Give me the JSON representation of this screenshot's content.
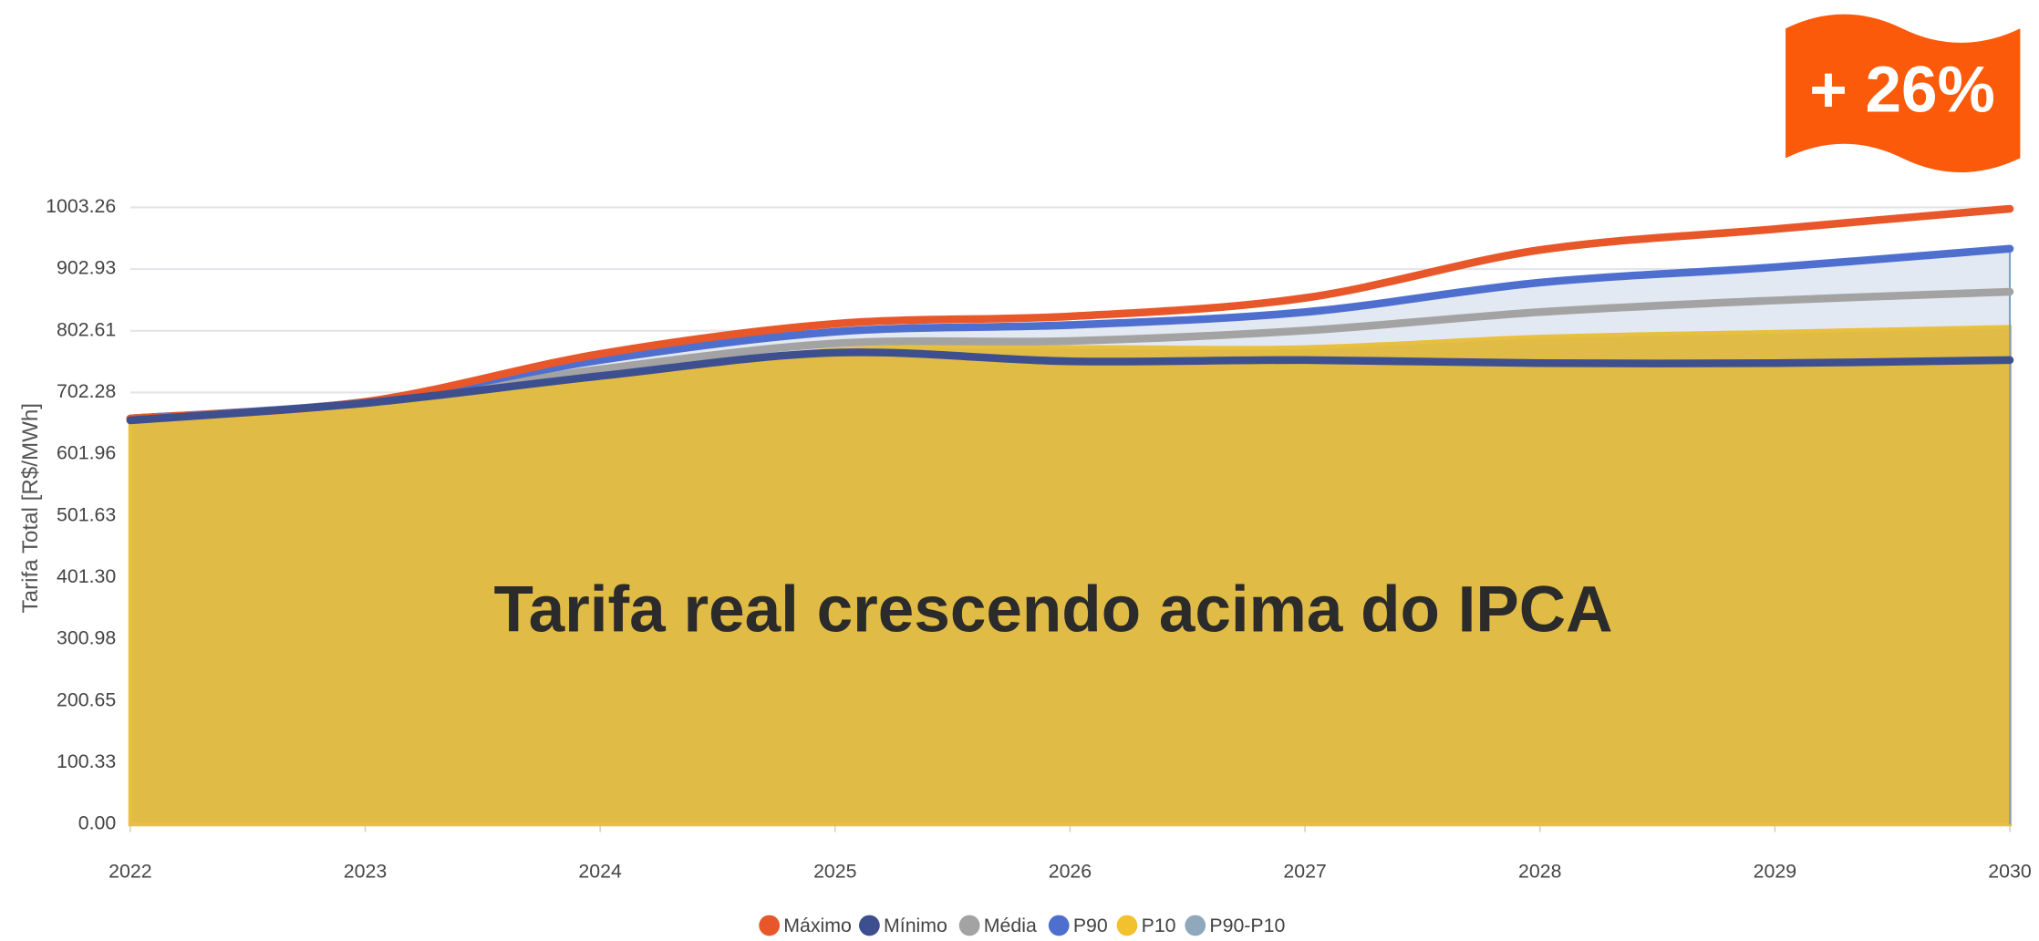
{
  "chart_data": {
    "type": "area",
    "ylabel": "Tarifa Total [R$/MWh]",
    "x": [
      2022,
      2023,
      2024,
      2025,
      2026,
      2027,
      2028,
      2029,
      2030
    ],
    "xlim": [
      2022,
      2030
    ],
    "xticks": [
      2022,
      2023,
      2024,
      2025,
      2026,
      2027,
      2028,
      2029,
      2030
    ],
    "ylim": [
      0,
      1003.26
    ],
    "yticks": [
      {
        "value": 0,
        "label": "0.00"
      },
      100.33,
      200.65,
      300.98,
      {
        "value": 401.3,
        "label": "401.30"
      },
      501.63,
      601.96,
      702.28,
      802.61,
      902.93,
      1003.26
    ],
    "grid": true,
    "legend": "bottom",
    "series": [
      {
        "name": "Máximo",
        "color": "#e8572a",
        "values": [
          660,
          687,
          765,
          814,
          826,
          856,
          934,
          968,
          1001
        ]
      },
      {
        "name": "Mínimo",
        "color": "#3d4f8f",
        "values": [
          657,
          685,
          729,
          767,
          753,
          755,
          750,
          750,
          755
        ]
      },
      {
        "name": "Média",
        "color": "#a3a3a3",
        "values": [
          660,
          686,
          740,
          782,
          786,
          803,
          833,
          852,
          866
        ]
      },
      {
        "name": "P90",
        "color": "#4f6fcf",
        "values": [
          660,
          687,
          755,
          801,
          812,
          833,
          881,
          906,
          936
        ]
      },
      {
        "name": "P10",
        "color": "#f2c12e",
        "values": [
          655,
          684,
          725,
          772,
          776,
          776,
          793,
          801,
          809
        ]
      },
      {
        "name": "P90-P10",
        "color": "#8fa8bc"
      }
    ],
    "annotations": [
      "Tarifa real crescendo acima do IPCA",
      "+ 26%"
    ]
  }
}
